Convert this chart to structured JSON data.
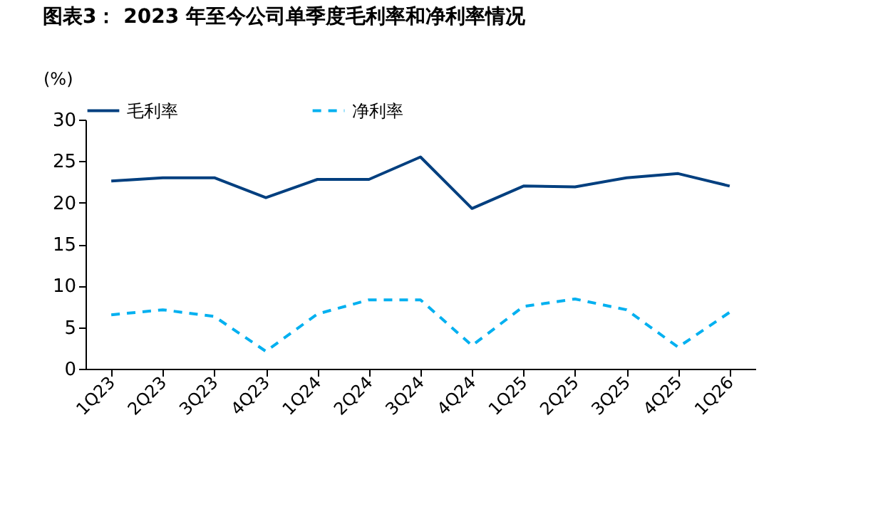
{
  "chart_data": {
    "type": "line",
    "title": "图表3： 2023 年至今公司单季度毛利率和净利率情况",
    "ylabel": "(%)",
    "categories": [
      "1Q23",
      "2Q23",
      "3Q23",
      "4Q23",
      "1Q24",
      "2Q24",
      "3Q24",
      "4Q24",
      "1Q25",
      "2Q25",
      "3Q25",
      "4Q25",
      "1Q26"
    ],
    "series": [
      {
        "name": "毛利率",
        "color": "#003f7f",
        "line_style": "solid",
        "values": [
          22.6,
          23.0,
          23.0,
          20.6,
          22.8,
          22.8,
          25.5,
          19.3,
          22.0,
          21.9,
          23.0,
          23.5,
          22.0
        ]
      },
      {
        "name": "净利率",
        "color": "#00b0f0",
        "line_style": "dashed",
        "values": [
          6.5,
          7.1,
          6.3,
          2.1,
          6.6,
          8.3,
          8.3,
          2.8,
          7.5,
          8.4,
          7.1,
          2.6,
          6.8
        ]
      }
    ],
    "ylim": [
      0,
      30
    ],
    "yticks": [
      0,
      5,
      10,
      15,
      20,
      25,
      30
    ],
    "grid": false,
    "legend": "top",
    "marker": "none"
  }
}
